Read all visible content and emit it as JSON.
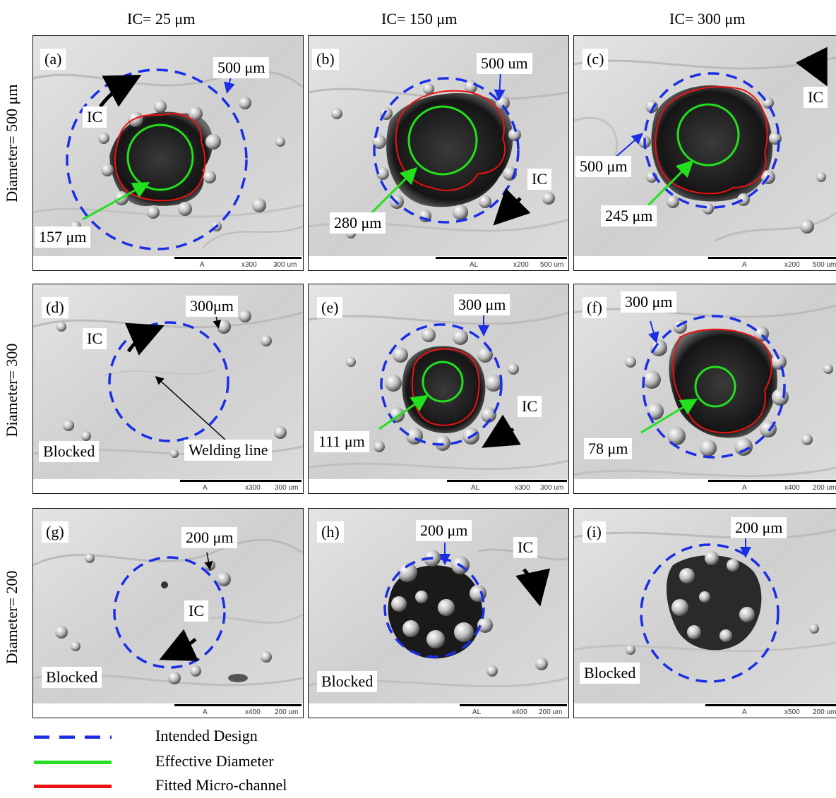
{
  "column_headers": [
    "IC= 25 μm",
    "IC= 150 μm",
    "IC= 300 μm"
  ],
  "row_headers": [
    "Diameter= 500 μm",
    "Diameter= 300",
    "Diameter= 200"
  ],
  "panels": [
    {
      "id": "a",
      "letter": "(a)",
      "design_label": "500 μm",
      "ic": "IC",
      "effective": "157 μm",
      "scale": {
        "mag": "x300",
        "len": "300 um",
        "mark": "A"
      }
    },
    {
      "id": "b",
      "letter": "(b)",
      "design_label": "500 um",
      "ic": "IC",
      "effective": "280 μm",
      "scale": {
        "mag": "x200",
        "len": "500 um",
        "mark": "AL"
      }
    },
    {
      "id": "c",
      "letter": "(c)",
      "design_label": "500 μm",
      "ic": "IC",
      "effective": "245 μm",
      "scale": {
        "mag": "x200",
        "len": "500 um",
        "mark": "A"
      }
    },
    {
      "id": "d",
      "letter": "(d)",
      "design_label": "300μm",
      "ic": "IC",
      "blocked": "Blocked",
      "note": "Welding line",
      "scale": {
        "mag": "x300",
        "len": "300 um",
        "mark": "A"
      }
    },
    {
      "id": "e",
      "letter": "(e)",
      "design_label": "300 μm",
      "ic": "IC",
      "effective": "111 μm",
      "scale": {
        "mag": "x300",
        "len": "300 um",
        "mark": "AL"
      }
    },
    {
      "id": "f",
      "letter": "(f)",
      "design_label": "300 μm",
      "effective": "78 μm",
      "scale": {
        "mag": "x400",
        "len": "200 um",
        "mark": "A"
      }
    },
    {
      "id": "g",
      "letter": "(g)",
      "design_label": "200 μm",
      "ic": "IC",
      "blocked": "Blocked",
      "scale": {
        "mag": "x400",
        "len": "200 um",
        "mark": "A"
      }
    },
    {
      "id": "h",
      "letter": "(h)",
      "design_label": "200 μm",
      "ic": "IC",
      "blocked": "Blocked",
      "scale": {
        "mag": "x400",
        "len": "200 um",
        "mark": "AL"
      }
    },
    {
      "id": "i",
      "letter": "(i)",
      "design_label": "200 μm",
      "blocked": "Blocked",
      "scale": {
        "mag": "x500",
        "len": "200 um",
        "mark": "A"
      }
    }
  ],
  "legend": [
    {
      "label": "Intended Design",
      "color": "#1a2ee6",
      "style": "dashed"
    },
    {
      "label": "Effective Diameter",
      "color": "#22e01c",
      "style": "solid"
    },
    {
      "label": "Fitted Micro-channel",
      "color": "#ee1111",
      "style": "solid"
    }
  ],
  "colors": {
    "intended": "#1a2ee6",
    "effective": "#22e01c",
    "fitted": "#ee1111"
  }
}
